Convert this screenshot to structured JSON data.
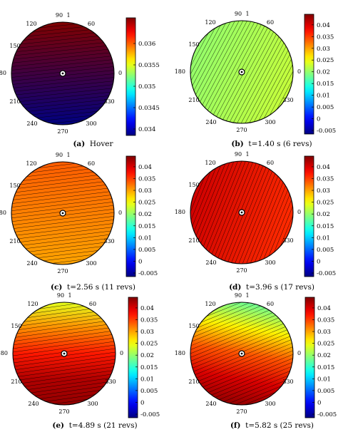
{
  "chart_data": [
    {
      "type": "heatmap",
      "caption_letter": "(a)",
      "caption_text": "Hover",
      "angle_labels": [
        "90",
        "1",
        "60",
        "0",
        "330",
        "300",
        "270",
        "240",
        "210",
        "180",
        "150",
        "120"
      ],
      "colorbar_ticks": [
        "0.036",
        "0.0355",
        "0.035",
        "0.0345",
        "0.034"
      ],
      "colorbar_values": [
        0.036,
        0.0355,
        0.035,
        0.0345,
        0.034
      ],
      "colorbar_range": [
        0.03385,
        0.0366
      ],
      "field_gradient": {
        "direction_deg": 90,
        "stops": [
          0.0366,
          0.03385
        ]
      },
      "contour_angle_deg": -6,
      "colormap": "jet"
    },
    {
      "type": "heatmap",
      "caption_letter": "(b)",
      "caption_text": "t=1.40 s (6 revs)",
      "angle_labels": [
        "90",
        "1",
        "60",
        "0",
        "330",
        "300",
        "270",
        "240",
        "210",
        "180",
        "150",
        "120"
      ],
      "colorbar_ticks": [
        "0.04",
        "0.035",
        "0.03",
        "0.025",
        "0.02",
        "0.015",
        "0.01",
        "0.005",
        "0",
        "-0.005"
      ],
      "colorbar_values": [
        0.04,
        0.035,
        0.03,
        0.025,
        0.02,
        0.015,
        0.01,
        0.005,
        0,
        -0.005
      ],
      "colorbar_range": [
        -0.0065,
        0.0445
      ],
      "field_gradient": {
        "direction_deg": 20,
        "stops": [
          0.02,
          0.0225
        ]
      },
      "contour_angle_deg": -62,
      "colormap": "jet"
    },
    {
      "type": "heatmap",
      "caption_letter": "(c)",
      "caption_text": "t=2.56 s (11 revs)",
      "angle_labels": [
        "90",
        "1",
        "60",
        "0",
        "330",
        "300",
        "270",
        "240",
        "210",
        "180",
        "150",
        "120"
      ],
      "colorbar_ticks": [
        "0.04",
        "0.035",
        "0.03",
        "0.025",
        "0.02",
        "0.015",
        "0.01",
        "0.005",
        "0",
        "-0.005"
      ],
      "colorbar_values": [
        0.04,
        0.035,
        0.03,
        0.025,
        0.02,
        0.015,
        0.01,
        0.005,
        0,
        -0.005
      ],
      "colorbar_range": [
        -0.0065,
        0.0445
      ],
      "field_gradient": {
        "direction_deg": 90,
        "stops": [
          0.0335,
          0.03
        ]
      },
      "contour_angle_deg": -7,
      "colormap": "jet"
    },
    {
      "type": "heatmap",
      "caption_letter": "(d)",
      "caption_text": "t=3.96 s (17 revs)",
      "angle_labels": [
        "90",
        "1",
        "60",
        "0",
        "330",
        "300",
        "270",
        "240",
        "210",
        "180",
        "150",
        "120"
      ],
      "colorbar_ticks": [
        "0.04",
        "0.035",
        "0.03",
        "0.025",
        "0.02",
        "0.015",
        "0.01",
        "0.005",
        "0",
        "-0.005"
      ],
      "colorbar_values": [
        0.04,
        0.035,
        0.03,
        0.025,
        0.02,
        0.015,
        0.01,
        0.005,
        0,
        -0.005
      ],
      "colorbar_range": [
        -0.0065,
        0.0445
      ],
      "field_gradient": {
        "direction_deg": 15,
        "stops": [
          0.0405,
          0.036
        ]
      },
      "contour_angle_deg": -68,
      "colormap": "jet"
    },
    {
      "type": "heatmap",
      "caption_letter": "(e)",
      "caption_text": "t=4.89 s (21 revs)",
      "angle_labels": [
        "90",
        "1",
        "60",
        "0",
        "330",
        "300",
        "270",
        "240",
        "210",
        "180",
        "150",
        "120"
      ],
      "colorbar_ticks": [
        "0.04",
        "0.035",
        "0.03",
        "0.025",
        "0.02",
        "0.015",
        "0.01",
        "0.005",
        "0",
        "-0.005"
      ],
      "colorbar_values": [
        0.04,
        0.035,
        0.03,
        0.025,
        0.02,
        0.015,
        0.01,
        0.005,
        0,
        -0.005
      ],
      "colorbar_range": [
        -0.0065,
        0.0445
      ],
      "field_gradient": {
        "direction_deg": 90,
        "stops": [
          0.024,
          0.031,
          0.037,
          0.042,
          0.0435
        ]
      },
      "contour_angle_deg": -8,
      "colormap": "jet"
    },
    {
      "type": "heatmap",
      "caption_letter": "(f)",
      "caption_text": "t=5.82 s (25 revs)",
      "angle_labels": [
        "90",
        "1",
        "60",
        "0",
        "330",
        "300",
        "270",
        "240",
        "210",
        "180",
        "150",
        "120"
      ],
      "colorbar_ticks": [
        "0.04",
        "0.035",
        "0.03",
        "0.025",
        "0.02",
        "0.015",
        "0.01",
        "0.005",
        "0",
        "-0.005"
      ],
      "colorbar_values": [
        0.04,
        0.035,
        0.03,
        0.025,
        0.02,
        0.015,
        0.01,
        0.005,
        0,
        -0.005
      ],
      "colorbar_range": [
        -0.0065,
        0.0445
      ],
      "field_gradient": {
        "direction_deg": 100,
        "stops": [
          0.018,
          0.026,
          0.034,
          0.04,
          0.0435
        ]
      },
      "contour_angle_deg": -22,
      "colormap": "jet"
    }
  ]
}
